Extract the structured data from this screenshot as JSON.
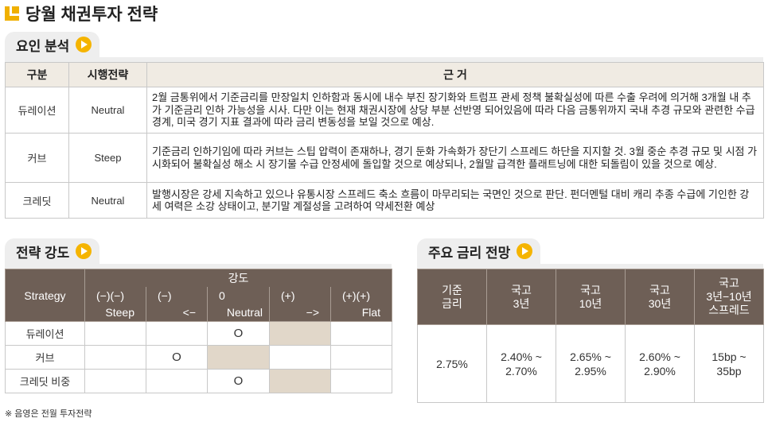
{
  "title": "당월 채권투자 전략",
  "factor_section": {
    "heading": "요인 분석",
    "headers": [
      "구분",
      "시행전략",
      "근 거"
    ],
    "rows": [
      {
        "category": "듀레이션",
        "strategy": "Neutral",
        "reason": "2월 금통위에서 기준금리를 만장일치 인하함과 동시에 내수 부진 장기화와 트럼프 관세 정책 불확실성에 따른 수출 우려에 의거해 3개월 내 추가 기준금리 인하 가능성을 시사. 다만 이는 현재 채권시장에 상당 부분 선반영 되어있음에 따라 다음 금통위까지 국내 추경 규모와 관련한 수급 경계, 미국 경기 지표 결과에 따라 금리 변동성을 보일 것으로 예상."
      },
      {
        "category": "커브",
        "strategy": "Steep",
        "reason": "기준금리 인하기임에 따라 커브는 스팁 압력이 존재하나, 경기 둔화 가속화가 장단기 스프레드 하단을 지지할 것. 3월 중순 추경 규모 및 시점 가시화되어 불확실성 해소 시 장기물 수급 안정세에 돌입할 것으로 예상되나, 2월말 급격한 플래트닝에 대한 되돌림이 있을 것으로 예상."
      },
      {
        "category": "크레딧",
        "strategy": "Neutral",
        "reason": "발행시장은 강세 지속하고 있으나 유통시장 스프레드 축소 흐름이 마무리되는 국면인 것으로 판단. 펀더멘털 대비 캐리 추종 수급에 기인한 강세 여력은 소강 상태이고, 분기말 계절성을 고려하여 약세전환 예상"
      }
    ]
  },
  "strength_section": {
    "heading": "전략 강도",
    "header_strategy": "Strategy",
    "header_group": "강도",
    "columns": [
      {
        "top": "(−)(−)",
        "bottom": "Steep"
      },
      {
        "top": "(−)",
        "bottom": "<−"
      },
      {
        "top": "0",
        "bottom": "Neutral"
      },
      {
        "top": "(+)",
        "bottom": "−>"
      },
      {
        "top": "(+)(+)",
        "bottom": "Flat"
      }
    ],
    "rows": [
      {
        "label": "듀레이션",
        "marks": [
          "",
          "",
          "O",
          "",
          ""
        ],
        "shaded_index": 3
      },
      {
        "label": "커브",
        "marks": [
          "",
          "O",
          "",
          "",
          ""
        ],
        "shaded_index": 2
      },
      {
        "label": "크레딧 비중",
        "marks": [
          "",
          "",
          "O",
          "",
          ""
        ],
        "shaded_index": 3
      }
    ],
    "shade_color": "#e1d7c9"
  },
  "rate_section": {
    "heading": "주요 금리 전망",
    "headers": [
      [
        "기준",
        "금리"
      ],
      [
        "국고",
        "3년"
      ],
      [
        "국고",
        "10년"
      ],
      [
        "국고",
        "30년"
      ],
      [
        "국고",
        "3년−10년",
        "스프레드"
      ]
    ],
    "values": [
      [
        "2.75%"
      ],
      [
        "2.40% ~",
        "2.70%"
      ],
      [
        "2.65% ~",
        "2.95%"
      ],
      [
        "2.60% ~",
        "2.90%"
      ],
      [
        "15bp ~",
        "35bp"
      ]
    ]
  },
  "note": "※ 음영은 전월 투자전략",
  "colors": {
    "accent": "#f5b400",
    "header_dark": "#6e5f56",
    "header_light": "#f0ebe3"
  }
}
